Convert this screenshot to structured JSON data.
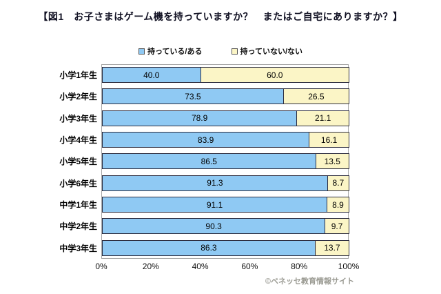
{
  "title": "【図1　お子さまはゲーム機を持っていますか？　またはご自宅にありますか？】",
  "legend": {
    "have_label": "持っている/ある",
    "not_have_label": "持っていない/ない"
  },
  "colors": {
    "have": "#8FC9F3",
    "not_have": "#FBF5C6",
    "bar_border": "#2b2b3d",
    "plot_border": "#a6a6a6",
    "copyright_text": "#9b9b93"
  },
  "chart_data": {
    "type": "bar",
    "orientation": "horizontal",
    "stacked": true,
    "title": "【図1　お子さまはゲーム機を持っていますか？　またはご自宅にありますか？】",
    "categories": [
      "小学1年生",
      "小学2年生",
      "小学3年生",
      "小学4年生",
      "小学5年生",
      "小学6年生",
      "中学1年生",
      "中学2年生",
      "中学3年生"
    ],
    "series": [
      {
        "name": "持っている/ある",
        "color": "#8FC9F3",
        "values": [
          40.0,
          73.5,
          78.9,
          83.9,
          86.5,
          91.3,
          91.1,
          90.3,
          86.3
        ]
      },
      {
        "name": "持っていない/ない",
        "color": "#FBF5C6",
        "values": [
          60.0,
          26.5,
          21.1,
          16.1,
          13.5,
          8.7,
          8.9,
          9.7,
          13.7
        ]
      }
    ],
    "x_ticks": [
      "0%",
      "20%",
      "40%",
      "60%",
      "80%",
      "100%"
    ],
    "xlim": [
      0,
      100
    ],
    "value_labels": "one_decimal_inside_segments",
    "legend_position": "top",
    "grid": false
  },
  "footer": {
    "copyright": "©ベネッセ教育情報サイト"
  }
}
